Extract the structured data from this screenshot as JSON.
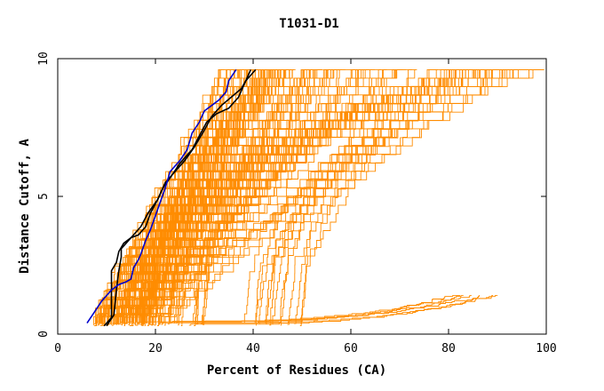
{
  "chart_data": {
    "type": "line",
    "title": "T1031-D1",
    "xlabel": "Percent of Residues (CA)",
    "ylabel": "Distance Cutoff, A",
    "xlim": [
      0,
      100
    ],
    "ylim": [
      0,
      10
    ],
    "xticks": [
      0,
      20,
      40,
      60,
      80,
      100
    ],
    "yticks": [
      0,
      5,
      10
    ],
    "colors": {
      "orange": "#ff8c00",
      "black": "#000000",
      "blue": "#0000cd",
      "axis": "#000000"
    },
    "highlight_series": [
      {
        "name": "black-1",
        "color": "black",
        "points": [
          [
            9.5,
            0.3
          ],
          [
            11,
            0.6
          ],
          [
            11,
            1.5
          ],
          [
            11,
            2.3
          ],
          [
            12,
            2.6
          ],
          [
            12.5,
            3.0
          ],
          [
            13.5,
            3.3
          ],
          [
            15,
            3.5
          ],
          [
            16.5,
            3.6
          ],
          [
            18,
            3.9
          ],
          [
            19,
            4.4
          ],
          [
            20.5,
            4.9
          ],
          [
            22,
            5.5
          ],
          [
            24,
            5.9
          ],
          [
            26,
            6.3
          ],
          [
            28,
            6.8
          ],
          [
            30,
            7.4
          ],
          [
            31.5,
            7.9
          ],
          [
            33.5,
            8.3
          ],
          [
            35.5,
            8.6
          ],
          [
            37.5,
            8.9
          ],
          [
            38.5,
            9.2
          ],
          [
            40.5,
            9.6
          ]
        ]
      },
      {
        "name": "black-2",
        "color": "black",
        "points": [
          [
            10,
            0.3
          ],
          [
            11.5,
            0.7
          ],
          [
            12,
            1.6
          ],
          [
            12.5,
            2.3
          ],
          [
            13,
            2.8
          ],
          [
            13,
            3.1
          ],
          [
            14,
            3.3
          ],
          [
            15.5,
            3.6
          ],
          [
            17,
            3.9
          ],
          [
            18.5,
            4.4
          ],
          [
            20.5,
            4.9
          ],
          [
            21.5,
            5.3
          ],
          [
            23.5,
            5.8
          ],
          [
            25,
            6.2
          ],
          [
            27.5,
            6.7
          ],
          [
            29,
            7.2
          ],
          [
            30.5,
            7.7
          ],
          [
            32.5,
            8.0
          ],
          [
            35,
            8.2
          ],
          [
            37,
            8.6
          ],
          [
            38,
            9.0
          ],
          [
            39.5,
            9.6
          ]
        ]
      },
      {
        "name": "blue",
        "color": "blue",
        "points": [
          [
            6,
            0.4
          ],
          [
            7.5,
            0.8
          ],
          [
            9,
            1.2
          ],
          [
            11,
            1.6
          ],
          [
            12.5,
            1.8
          ],
          [
            14,
            1.9
          ],
          [
            15,
            2.0
          ],
          [
            15.5,
            2.4
          ],
          [
            16.5,
            2.7
          ],
          [
            17,
            2.9
          ],
          [
            18,
            3.4
          ],
          [
            19,
            3.8
          ],
          [
            20,
            4.3
          ],
          [
            21,
            4.8
          ],
          [
            22,
            5.3
          ],
          [
            23,
            5.9
          ],
          [
            25,
            6.3
          ],
          [
            26.5,
            6.7
          ],
          [
            27.5,
            7.3
          ],
          [
            29,
            7.7
          ],
          [
            30,
            8.1
          ],
          [
            31.5,
            8.3
          ],
          [
            33,
            8.5
          ],
          [
            34.5,
            8.8
          ],
          [
            35,
            9.2
          ],
          [
            36.5,
            9.6
          ]
        ]
      }
    ],
    "orange_families": [
      {
        "count": 55,
        "x0": [
          7,
          18
        ],
        "x_end": [
          34,
          48
        ],
        "shape": 1.15,
        "y_max": 9.6
      },
      {
        "count": 45,
        "x0": [
          8,
          20
        ],
        "x_end": [
          44,
          72
        ],
        "shape": 1.05,
        "y_max": 9.6
      },
      {
        "count": 14,
        "x0": [
          10,
          22
        ],
        "x_end": [
          58,
          82
        ],
        "shape": 0.9,
        "y_max": 9.6
      },
      {
        "count": 30,
        "x0": [
          14,
          30
        ],
        "x_end": [
          84,
          100
        ],
        "shape": 2.6,
        "y_max": 9.6
      },
      {
        "count": 14,
        "x0": [
          38,
          52
        ],
        "x_end": [
          84,
          100
        ],
        "shape": 2.2,
        "y_max": 9.6
      },
      {
        "count": 6,
        "x0": [
          15,
          30
        ],
        "x_end": [
          80,
          92
        ],
        "shape": 0.35,
        "y_max": 1.4
      }
    ]
  }
}
